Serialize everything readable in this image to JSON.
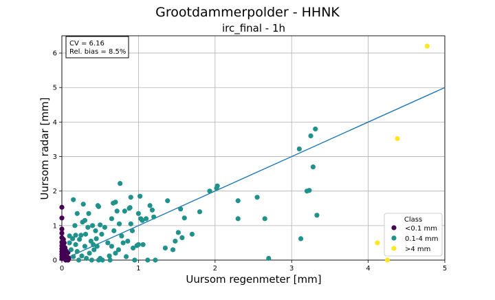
{
  "suptitle": "Grootdammerpolder - HHNK",
  "colors": {
    "class_lt_0_1": "#440154",
    "class_0_1_4": "#21918c",
    "class_gt_4": "#fde725",
    "fit_line": "#1f77b4",
    "grid": "#b0b0b0"
  },
  "chart_data": {
    "type": "scatter",
    "title": "irc_final - 1h",
    "xlabel": "Uursom regenmeter [mm]",
    "ylabel": "Uursom radar [mm]",
    "xlim": [
      0,
      5
    ],
    "ylim": [
      0,
      6.5
    ],
    "xticks": [
      0,
      1,
      2,
      3,
      4,
      5
    ],
    "yticks": [
      0,
      1,
      2,
      3,
      4,
      5,
      6
    ],
    "grid": true,
    "stats_box": {
      "cv": "CV = 6.16",
      "bias": "Rel. bias = 8.5%",
      "placement": "top-left"
    },
    "legend": {
      "title": "Class",
      "placement": "lower-right"
    },
    "fit_line": {
      "slope": 1.0,
      "intercept": 0.0
    },
    "series": [
      {
        "name": "<0.1 mm",
        "color": "#440154",
        "points": [
          [
            0.0,
            1.53
          ],
          [
            0.0,
            1.22
          ],
          [
            0.0,
            0.9
          ],
          [
            0.0,
            0.78
          ],
          [
            0.0,
            0.65
          ],
          [
            0.0,
            0.52
          ],
          [
            0.0,
            0.42
          ],
          [
            0.0,
            0.33
          ],
          [
            0.0,
            0.25
          ],
          [
            0.0,
            0.17
          ],
          [
            0.0,
            0.1
          ],
          [
            0.0,
            0.04
          ],
          [
            0.02,
            0.6
          ],
          [
            0.02,
            0.45
          ],
          [
            0.02,
            0.3
          ],
          [
            0.02,
            0.15
          ],
          [
            0.03,
            0.5
          ],
          [
            0.03,
            0.22
          ],
          [
            0.04,
            0.36
          ],
          [
            0.04,
            0.08
          ],
          [
            0.05,
            0.28
          ],
          [
            0.05,
            0.0
          ],
          [
            0.06,
            0.18
          ],
          [
            0.07,
            0.1
          ],
          [
            0.08,
            0.22
          ],
          [
            0.08,
            0.0
          ],
          [
            0.09,
            0.05
          ]
        ]
      },
      {
        "name": "0.1-4 mm",
        "color": "#21918c",
        "points": [
          [
            0.1,
            0.5
          ],
          [
            0.1,
            0.7
          ],
          [
            0.12,
            0.3
          ],
          [
            0.14,
            0.62
          ],
          [
            0.15,
            0.1
          ],
          [
            0.15,
            1.75
          ],
          [
            0.17,
            1.0
          ],
          [
            0.18,
            0.72
          ],
          [
            0.18,
            0.45
          ],
          [
            0.2,
            0.25
          ],
          [
            0.2,
            1.35
          ],
          [
            0.22,
            0.0
          ],
          [
            0.23,
            0.6
          ],
          [
            0.25,
            0.72
          ],
          [
            0.26,
            0.12
          ],
          [
            0.27,
            1.1
          ],
          [
            0.28,
            1.62
          ],
          [
            0.3,
            0.4
          ],
          [
            0.3,
            1.15
          ],
          [
            0.31,
            0.75
          ],
          [
            0.32,
            0.05
          ],
          [
            0.34,
            0.95
          ],
          [
            0.35,
            1.35
          ],
          [
            0.36,
            0.2
          ],
          [
            0.38,
            0.55
          ],
          [
            0.39,
            0.0
          ],
          [
            0.4,
            1.0
          ],
          [
            0.41,
            0.45
          ],
          [
            0.42,
            0.3
          ],
          [
            0.44,
            0.85
          ],
          [
            0.45,
            0.62
          ],
          [
            0.46,
            0.4
          ],
          [
            0.47,
            1.58
          ],
          [
            0.48,
            1.55
          ],
          [
            0.48,
            0.0
          ],
          [
            0.5,
            1.02
          ],
          [
            0.5,
            0.05
          ],
          [
            0.52,
            0.75
          ],
          [
            0.53,
            0.0
          ],
          [
            0.56,
            0.95
          ],
          [
            0.6,
            0.5
          ],
          [
            0.62,
            0.12
          ],
          [
            0.63,
            0.0
          ],
          [
            0.65,
            0.4
          ],
          [
            0.65,
            1.2
          ],
          [
            0.67,
            1.65
          ],
          [
            0.68,
            0.85
          ],
          [
            0.7,
            1.68
          ],
          [
            0.7,
            0.2
          ],
          [
            0.72,
            1.42
          ],
          [
            0.74,
            0.3
          ],
          [
            0.75,
            1.05
          ],
          [
            0.76,
            2.22
          ],
          [
            0.78,
            0.7
          ],
          [
            0.8,
            0.5
          ],
          [
            0.82,
            1.42
          ],
          [
            0.84,
            0.1
          ],
          [
            0.86,
            0.55
          ],
          [
            0.88,
            1.5
          ],
          [
            0.89,
            1.52
          ],
          [
            0.9,
            1.05
          ],
          [
            0.9,
            1.82
          ],
          [
            0.92,
            0.85
          ],
          [
            0.93,
            0.35
          ],
          [
            0.95,
            0.0
          ],
          [
            0.98,
            0.42
          ],
          [
            1.0,
            1.35
          ],
          [
            1.0,
            0.45
          ],
          [
            1.02,
            1.85
          ],
          [
            1.03,
            1.2
          ],
          [
            1.05,
            1.15
          ],
          [
            1.06,
            0.45
          ],
          [
            1.1,
            1.2
          ],
          [
            1.12,
            0.0
          ],
          [
            1.15,
            1.58
          ],
          [
            1.18,
            1.45
          ],
          [
            1.2,
            1.25
          ],
          [
            1.22,
            0.0
          ],
          [
            1.35,
            0.35
          ],
          [
            1.38,
            1.72
          ],
          [
            1.45,
            0.3
          ],
          [
            1.48,
            0.55
          ],
          [
            1.52,
            0.8
          ],
          [
            1.55,
            1.48
          ],
          [
            1.57,
            0.65
          ],
          [
            1.6,
            1.22
          ],
          [
            1.7,
            0.75
          ],
          [
            1.8,
            1.4
          ],
          [
            1.93,
            2.0
          ],
          [
            2.02,
            2.08
          ],
          [
            2.03,
            2.15
          ],
          [
            2.3,
            1.2
          ],
          [
            2.3,
            1.72
          ],
          [
            2.55,
            1.82
          ],
          [
            2.65,
            1.2
          ],
          [
            2.7,
            0.05
          ],
          [
            3.1,
            3.22
          ],
          [
            3.12,
            0.62
          ],
          [
            3.2,
            2.0
          ],
          [
            3.23,
            2.02
          ],
          [
            3.25,
            3.6
          ],
          [
            3.28,
            2.7
          ],
          [
            3.31,
            3.8
          ],
          [
            3.33,
            1.3
          ]
        ]
      },
      {
        "name": ">4 mm",
        "color": "#fde725",
        "points": [
          [
            4.12,
            0.5
          ],
          [
            4.25,
            0.0
          ],
          [
            4.38,
            3.52
          ],
          [
            4.77,
            6.2
          ]
        ]
      }
    ]
  }
}
